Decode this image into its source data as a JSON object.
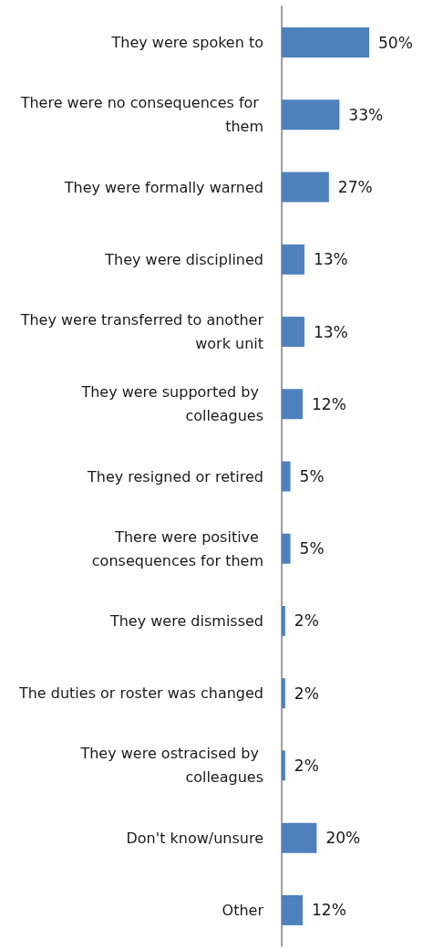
{
  "chart_data": {
    "type": "bar",
    "orientation": "horizontal",
    "categories": [
      "They were spoken to",
      "There were no consequences for them",
      "They were formally warned",
      "They were disciplined",
      "They were transferred to another work unit",
      "They were supported by colleagues",
      "They resigned or retired",
      "There were positive consequences for them",
      "They were dismissed",
      "The duties or roster was changed",
      "They were ostracised by colleagues",
      "Don't know/unsure",
      "Other"
    ],
    "values": [
      50,
      33,
      27,
      13,
      13,
      12,
      5,
      5,
      2,
      2,
      2,
      20,
      12
    ],
    "value_labels": [
      "50%",
      "33%",
      "27%",
      "13%",
      "13%",
      "12%",
      "5%",
      "5%",
      "2%",
      "2%",
      "2%",
      "20%",
      "12%"
    ],
    "color": "#4f81bd",
    "tick_labels": "y"
  }
}
